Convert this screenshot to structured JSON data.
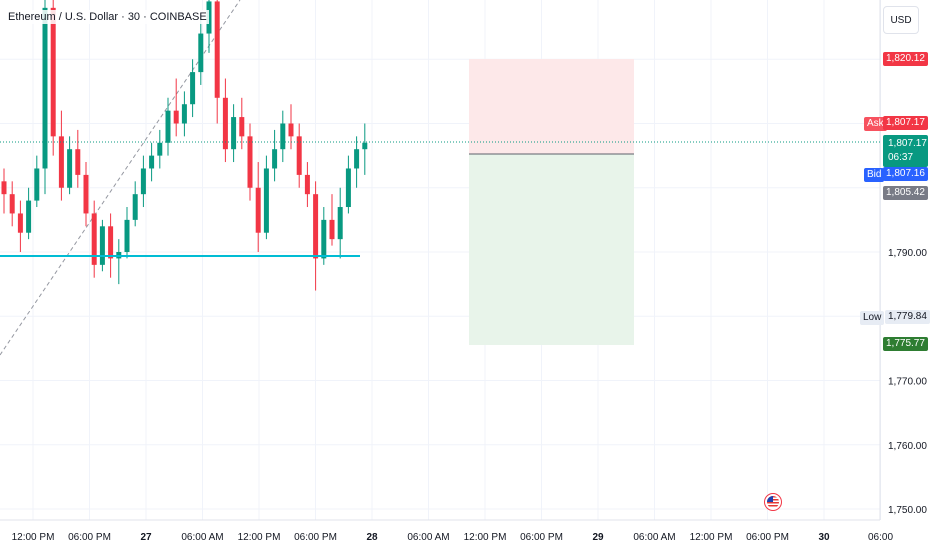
{
  "symbol": {
    "title": "Ethereum / U.S. Dollar · 30 · COINBASE"
  },
  "currency": "USD",
  "colors": {
    "up": "#089981",
    "down": "#f23645",
    "support_line": "#00bcd4",
    "stop_zone": "#fde8e9",
    "target_zone": "#e8f4ea",
    "grid": "#f0f3fa"
  },
  "chart_data": {
    "type": "candlestick",
    "price_axis": {
      "ticks": [
        "1,790.00",
        "1,780.00",
        "1,770.00",
        "1,760.00",
        "1,750.00"
      ],
      "ylim": [
        1748,
        1830
      ]
    },
    "time_axis": {
      "ticks": [
        "12:00 PM",
        "06:00 PM",
        "27",
        "06:00 AM",
        "12:00 PM",
        "06:00 PM",
        "28",
        "06:00 AM",
        "12:00 PM",
        "06:00 PM",
        "29",
        "06:00 AM",
        "12:00 PM",
        "06:00 PM",
        "30",
        "06:00"
      ]
    },
    "price_labels": {
      "stop": "1,820.12",
      "ask_label": "Ask",
      "ask": "1,807.17",
      "last": "1,807.17",
      "countdown": "06:37",
      "bid_label": "Bid",
      "bid": "1,807.16",
      "entry": "1,805.42",
      "low_label": "Low",
      "low": "1,779.84",
      "target": "1,775.77"
    },
    "support_level": 1790.0,
    "position": {
      "entry": 1805.42,
      "stop": 1820.12,
      "target": 1775.77
    },
    "candles": [
      [
        1801,
        1803,
        1796,
        1799
      ],
      [
        1799,
        1801,
        1794,
        1796
      ],
      [
        1796,
        1798,
        1790,
        1793
      ],
      [
        1793,
        1800,
        1792,
        1798
      ],
      [
        1798,
        1805,
        1797,
        1803
      ],
      [
        1803,
        1832,
        1799,
        1828
      ],
      [
        1828,
        1830,
        1805,
        1808
      ],
      [
        1808,
        1812,
        1798,
        1800
      ],
      [
        1800,
        1808,
        1799,
        1806
      ],
      [
        1806,
        1809,
        1800,
        1802
      ],
      [
        1802,
        1804,
        1794,
        1796
      ],
      [
        1796,
        1798,
        1786,
        1788
      ],
      [
        1788,
        1795,
        1787,
        1794
      ],
      [
        1794,
        1796,
        1786,
        1789
      ],
      [
        1789,
        1792,
        1785,
        1790
      ],
      [
        1790,
        1797,
        1789,
        1795
      ],
      [
        1795,
        1801,
        1794,
        1799
      ],
      [
        1799,
        1805,
        1797,
        1803
      ],
      [
        1803,
        1807,
        1801,
        1805
      ],
      [
        1805,
        1809,
        1803,
        1807
      ],
      [
        1807,
        1814,
        1805,
        1812
      ],
      [
        1812,
        1817,
        1808,
        1810
      ],
      [
        1810,
        1815,
        1808,
        1813
      ],
      [
        1813,
        1820,
        1811,
        1818
      ],
      [
        1818,
        1827,
        1816,
        1824
      ],
      [
        1824,
        1832,
        1821,
        1829
      ],
      [
        1829,
        1833,
        1810,
        1814
      ],
      [
        1814,
        1817,
        1804,
        1806
      ],
      [
        1806,
        1813,
        1804,
        1811
      ],
      [
        1811,
        1814,
        1806,
        1808
      ],
      [
        1808,
        1810,
        1798,
        1800
      ],
      [
        1800,
        1804,
        1790,
        1793
      ],
      [
        1793,
        1805,
        1792,
        1803
      ],
      [
        1803,
        1809,
        1801,
        1806
      ],
      [
        1806,
        1812,
        1804,
        1810
      ],
      [
        1810,
        1813,
        1806,
        1808
      ],
      [
        1808,
        1810,
        1800,
        1802
      ],
      [
        1802,
        1804,
        1797,
        1799
      ],
      [
        1799,
        1801,
        1784,
        1789
      ],
      [
        1789,
        1797,
        1788,
        1795
      ],
      [
        1795,
        1799,
        1791,
        1792
      ],
      [
        1792,
        1800,
        1789,
        1797
      ],
      [
        1797,
        1805,
        1796,
        1803
      ],
      [
        1803,
        1808,
        1800,
        1806
      ],
      [
        1806,
        1810,
        1802,
        1807
      ]
    ]
  }
}
